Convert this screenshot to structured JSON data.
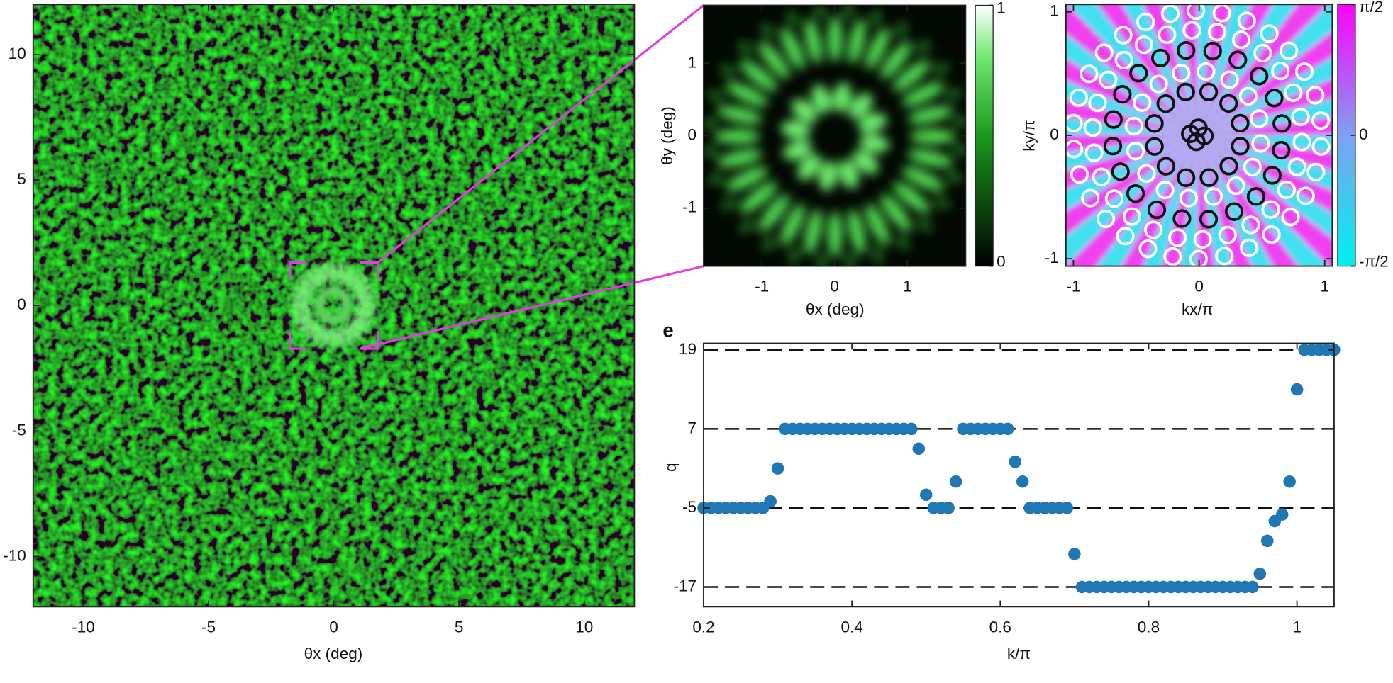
{
  "chart_data": [
    {
      "type": "heatmap",
      "xlabel": "θx (deg)",
      "xlim": [
        -12,
        12
      ],
      "ylim": [
        -12,
        12
      ],
      "xticks": [
        -10,
        -5,
        0,
        5,
        10
      ],
      "yticks": [
        -10,
        -5,
        0,
        5,
        10
      ]
    },
    {
      "type": "heatmap",
      "xlabel": "θx (deg)",
      "ylabel": "θy (deg)",
      "xlim": [
        -1.8,
        1.8
      ],
      "ylim": [
        -1.8,
        1.8
      ],
      "xticks": [
        -1,
        0,
        1
      ],
      "yticks": [
        -1,
        0,
        1
      ],
      "colorbar": {
        "lim": [
          0,
          1
        ],
        "ticks": [
          0,
          1
        ]
      }
    },
    {
      "type": "phase",
      "xlabel": "kx/π",
      "ylabel": "ky/π",
      "xlim": [
        -1.06,
        1.06
      ],
      "ylim": [
        -1.06,
        1.06
      ],
      "xticks": [
        -1,
        0,
        1
      ],
      "yticks": [
        -1,
        0,
        1
      ],
      "colorbar": {
        "lim": [
          -1.5708,
          1.5708
        ],
        "ticks": [
          {
            "value": 1.5708,
            "label": "π/2"
          },
          0,
          {
            "value": -1.5708,
            "label": "-π/2"
          }
        ]
      }
    },
    {
      "type": "scatter",
      "label": "e",
      "xlabel": "k/π",
      "ylabel": "q",
      "color": "#1f77b4",
      "grid": "dashed",
      "xlim": [
        0.2,
        1.05
      ],
      "ylim": [
        -20,
        20
      ],
      "xticks": [
        0.2,
        0.4,
        0.6,
        0.8,
        1
      ],
      "yticks": [
        -17,
        -5,
        7,
        19
      ],
      "x": [
        0.2,
        0.21,
        0.22,
        0.23,
        0.24,
        0.25,
        0.26,
        0.27,
        0.28,
        0.29,
        0.3,
        0.31,
        0.32,
        0.33,
        0.34,
        0.35,
        0.36,
        0.37,
        0.38,
        0.39,
        0.4,
        0.41,
        0.42,
        0.43,
        0.44,
        0.45,
        0.46,
        0.47,
        0.48,
        0.49,
        0.5,
        0.51,
        0.52,
        0.53,
        0.54,
        0.55,
        0.56,
        0.57,
        0.58,
        0.59,
        0.6,
        0.61,
        0.62,
        0.63,
        0.64,
        0.65,
        0.66,
        0.67,
        0.68,
        0.69,
        0.7,
        0.71,
        0.72,
        0.73,
        0.74,
        0.75,
        0.76,
        0.77,
        0.78,
        0.79,
        0.8,
        0.81,
        0.82,
        0.83,
        0.84,
        0.85,
        0.86,
        0.87,
        0.88,
        0.89,
        0.9,
        0.91,
        0.92,
        0.93,
        0.94,
        0.95,
        0.96,
        0.97,
        0.98,
        0.99,
        1,
        1.01,
        1.02,
        1.03,
        1.04,
        1.05
      ],
      "values": [
        -5,
        -5,
        -5,
        -5,
        -5,
        -5,
        -5,
        -5,
        -5,
        -4,
        1,
        7,
        7,
        7,
        7,
        7,
        7,
        7,
        7,
        7,
        7,
        7,
        7,
        7,
        7,
        7,
        7,
        7,
        7,
        4,
        -3,
        -5,
        -5,
        -5,
        -1,
        7,
        7,
        7,
        7,
        7,
        7,
        7,
        2,
        -1,
        -5,
        -5,
        -5,
        -5,
        -5,
        -5,
        -12,
        -17,
        -17,
        -17,
        -17,
        -17,
        -17,
        -17,
        -17,
        -17,
        -17,
        -17,
        -17,
        -17,
        -17,
        -17,
        -17,
        -17,
        -17,
        -17,
        -17,
        -17,
        -17,
        -17,
        -17,
        -15,
        -10,
        -7,
        -6,
        -1,
        13,
        19,
        19,
        19,
        19,
        19
      ]
    }
  ]
}
